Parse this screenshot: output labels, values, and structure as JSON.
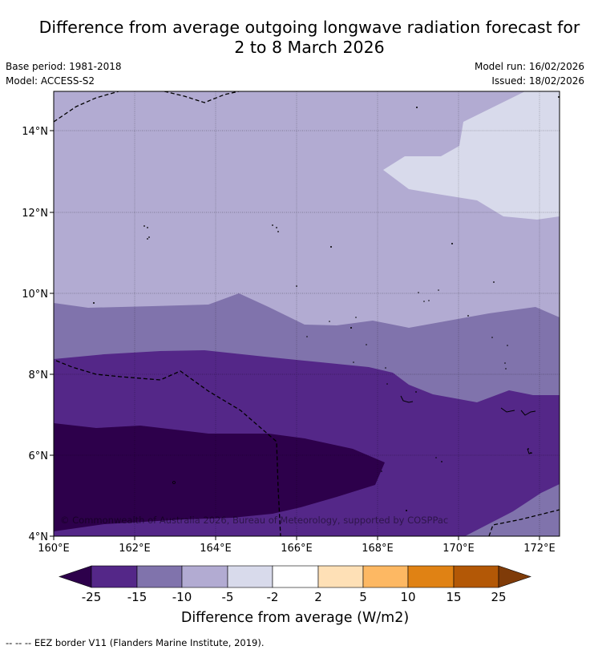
{
  "title": {
    "line1": "Difference from average outgoing longwave radiation forecast for",
    "line2": "2 to 8 March 2026"
  },
  "meta": {
    "base_period": "Base period: 1981-2018",
    "model": "Model: ACCESS-S2",
    "model_run": "Model run: 16/02/2026",
    "issued": "Issued: 18/02/2026"
  },
  "map": {
    "region": {
      "lon_min": 160,
      "lon_max": 172.5,
      "lat_min": 4,
      "lat_max": 15
    },
    "lat_ticks": [
      "14°N",
      "12°N",
      "10°N",
      "8°N",
      "6°N",
      "4°N"
    ],
    "lon_ticks": [
      "160°E",
      "162°E",
      "164°E",
      "166°E",
      "168°E",
      "170°E",
      "172°E"
    ],
    "copyright": "© Commonwealth of Australia 2026, Bureau of Meteorology, supported by COSPPac",
    "colors": {
      "lt_minus25": "#2d004b",
      "minus25_minus15": "#542788",
      "minus15_minus10": "#8073ac",
      "minus10_minus5": "#b2abd2",
      "minus5_minus2": "#d8daeb",
      "minus2_2": "#ffffff",
      "2_5": "#fee0b6",
      "5_10": "#fdb863",
      "10_15": "#e08214",
      "15_25": "#b35806",
      "gt_25": "#7f3b08"
    }
  },
  "colorbar": {
    "ticks": [
      "-25",
      "-15",
      "-10",
      "-5",
      "-2",
      "2",
      "5",
      "10",
      "15",
      "25"
    ],
    "label": "Difference from average (W/m2)"
  },
  "footnote": "-- -- -- EEZ border V11 (Flanders Marine Institute, 2019)."
}
